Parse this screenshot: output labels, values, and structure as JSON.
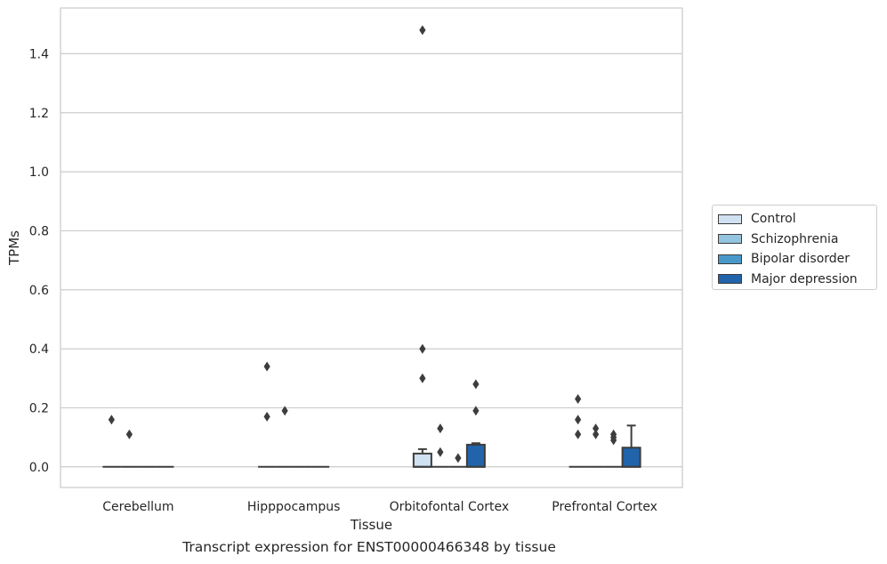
{
  "chart_data": {
    "type": "box",
    "xlabel": "Tissue",
    "ylabel": "TPMs",
    "caption": "Transcript expression for ENST00000466348 by tissue",
    "ylim": [
      -0.07,
      1.555
    ],
    "yticks": [
      0.0,
      0.2,
      0.4,
      0.6,
      0.8,
      1.0,
      1.2,
      1.4
    ],
    "ytick_labels": [
      "0.0",
      "0.2",
      "0.4",
      "0.6",
      "0.8",
      "1.0",
      "1.2",
      "1.4"
    ],
    "grid": "horizontal",
    "legend_position": "right",
    "categories": [
      "Cerebellum",
      "Hipppocampus",
      "Orbitofontal Cortex",
      "Prefrontal Cortex"
    ],
    "series": [
      {
        "name": "Control",
        "color": "#d0e1f2",
        "boxes": [
          {
            "q1": 0,
            "median": 0,
            "q3": 0,
            "whisker_low": 0,
            "whisker_high": 0,
            "outliers": [
              0.16
            ]
          },
          {
            "q1": 0,
            "median": 0,
            "q3": 0,
            "whisker_low": 0,
            "whisker_high": 0,
            "outliers": [
              0.34,
              0.17
            ]
          },
          {
            "q1": 0,
            "median": 0,
            "q3": 0.045,
            "whisker_low": 0,
            "whisker_high": 0.06,
            "outliers": [
              1.48,
              0.4,
              0.3
            ]
          },
          {
            "q1": 0,
            "median": 0,
            "q3": 0,
            "whisker_low": 0,
            "whisker_high": 0,
            "outliers": [
              0.23,
              0.16,
              0.11
            ]
          }
        ]
      },
      {
        "name": "Schizophrenia",
        "color": "#94c4df",
        "boxes": [
          {
            "q1": 0,
            "median": 0,
            "q3": 0,
            "whisker_low": 0,
            "whisker_high": 0,
            "outliers": [
              0.11
            ]
          },
          {
            "q1": 0,
            "median": 0,
            "q3": 0,
            "whisker_low": 0,
            "whisker_high": 0,
            "outliers": [
              0.19
            ]
          },
          {
            "q1": 0,
            "median": 0,
            "q3": 0,
            "whisker_low": 0,
            "whisker_high": 0,
            "outliers": [
              0.13,
              0.05
            ]
          },
          {
            "q1": 0,
            "median": 0,
            "q3": 0,
            "whisker_low": 0,
            "whisker_high": 0,
            "outliers": [
              0.13,
              0.11
            ]
          }
        ]
      },
      {
        "name": "Bipolar disorder",
        "color": "#4a98c9",
        "boxes": [
          {
            "q1": 0,
            "median": 0,
            "q3": 0,
            "whisker_low": 0,
            "whisker_high": 0,
            "outliers": []
          },
          {
            "q1": 0,
            "median": 0,
            "q3": 0,
            "whisker_low": 0,
            "whisker_high": 0,
            "outliers": []
          },
          {
            "q1": 0,
            "median": 0,
            "q3": 0,
            "whisker_low": 0,
            "whisker_high": 0,
            "outliers": [
              0.03
            ]
          },
          {
            "q1": 0,
            "median": 0,
            "q3": 0,
            "whisker_low": 0,
            "whisker_high": 0,
            "outliers": [
              0.11,
              0.1,
              0.09
            ]
          }
        ]
      },
      {
        "name": "Major depression",
        "color": "#2164ab",
        "boxes": [
          {
            "q1": 0,
            "median": 0,
            "q3": 0,
            "whisker_low": 0,
            "whisker_high": 0,
            "outliers": []
          },
          {
            "q1": 0,
            "median": 0,
            "q3": 0,
            "whisker_low": 0,
            "whisker_high": 0,
            "outliers": []
          },
          {
            "q1": 0,
            "median": 0,
            "q3": 0.075,
            "whisker_low": 0,
            "whisker_high": 0.08,
            "outliers": [
              0.28,
              0.19
            ]
          },
          {
            "q1": 0,
            "median": 0,
            "q3": 0.065,
            "whisker_low": 0,
            "whisker_high": 0.14,
            "outliers": []
          }
        ]
      }
    ]
  }
}
